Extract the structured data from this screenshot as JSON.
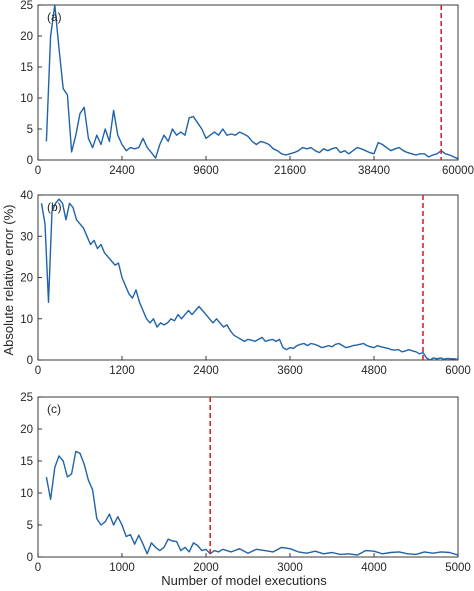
{
  "colors": {
    "series": "#1f64a8",
    "cutoff": "#d62728"
  },
  "ylabel": "Absolute relative error (%)",
  "xlabel": "Number of model executions",
  "chart_data": [
    {
      "type": "line",
      "panel_label": "(a)",
      "grid": true,
      "ylim": [
        0,
        25
      ],
      "yticks": [
        0,
        5,
        10,
        15,
        20,
        25
      ],
      "x_scale": "nonlinear (ticks unevenly spaced)",
      "x_tick_labels": [
        "0",
        "2400",
        "9600",
        "21600",
        "38400",
        "60000"
      ],
      "x_tick_index": [
        0,
        1,
        2,
        3,
        4,
        5
      ],
      "x_index": [
        0.1,
        0.15,
        0.2,
        0.25,
        0.3,
        0.35,
        0.4,
        0.45,
        0.5,
        0.55,
        0.6,
        0.65,
        0.7,
        0.75,
        0.8,
        0.85,
        0.9,
        0.95,
        1.0,
        1.05,
        1.1,
        1.15,
        1.2,
        1.25,
        1.3,
        1.35,
        1.4,
        1.45,
        1.5,
        1.55,
        1.6,
        1.65,
        1.7,
        1.75,
        1.8,
        1.85,
        1.9,
        1.95,
        2.0,
        2.05,
        2.1,
        2.15,
        2.2,
        2.25,
        2.3,
        2.35,
        2.4,
        2.45,
        2.5,
        2.55,
        2.6,
        2.65,
        2.7,
        2.75,
        2.8,
        2.85,
        2.9,
        2.95,
        3.0,
        3.05,
        3.1,
        3.15,
        3.2,
        3.25,
        3.3,
        3.35,
        3.4,
        3.45,
        3.5,
        3.55,
        3.6,
        3.65,
        3.7,
        3.75,
        3.8,
        3.85,
        3.9,
        3.95,
        4.0,
        4.05,
        4.1,
        4.15,
        4.2,
        4.25,
        4.3,
        4.35,
        4.4,
        4.45,
        4.5,
        4.55,
        4.6,
        4.65,
        4.7,
        4.75,
        4.8,
        4.85,
        4.9,
        4.95,
        5.0
      ],
      "values": [
        3,
        20,
        26,
        18,
        11.5,
        10.5,
        1.3,
        4,
        7.5,
        8.5,
        3.5,
        2,
        4,
        2.5,
        5,
        3,
        8,
        4,
        2.5,
        1.5,
        2,
        1.8,
        2,
        3.5,
        2,
        1.2,
        0.3,
        2.5,
        4,
        3,
        5,
        4,
        4.5,
        4,
        6.8,
        7,
        6,
        5,
        3.5,
        4,
        4.5,
        4,
        5,
        4,
        4.2,
        4,
        4.5,
        4.2,
        3.8,
        3,
        2.5,
        3,
        2.8,
        2.5,
        1.8,
        1.5,
        1,
        0.8,
        1,
        1.2,
        1.5,
        2,
        1.8,
        2,
        1.5,
        1.2,
        1.8,
        1.5,
        1.8,
        2,
        1.2,
        1.5,
        1,
        1.5,
        2,
        1.8,
        1.5,
        1.2,
        1,
        2.8,
        2.5,
        2,
        1.5,
        1.8,
        2,
        1.5,
        1.2,
        1,
        0.8,
        1,
        1,
        0.5,
        0.8,
        1,
        1.5,
        1,
        0.8,
        0.5,
        0.2
      ],
      "cutoff_x_index": 4.8
    },
    {
      "type": "line",
      "panel_label": "(b)",
      "grid": true,
      "ylim": [
        0,
        40
      ],
      "yticks": [
        0,
        10,
        20,
        30,
        40
      ],
      "xlim": [
        0,
        6000
      ],
      "xticks": [
        0,
        1200,
        2400,
        3600,
        4800,
        6000
      ],
      "x": [
        50,
        100,
        150,
        200,
        250,
        300,
        350,
        400,
        450,
        500,
        550,
        600,
        650,
        700,
        750,
        800,
        850,
        900,
        950,
        1000,
        1050,
        1100,
        1150,
        1200,
        1250,
        1300,
        1350,
        1400,
        1450,
        1500,
        1550,
        1600,
        1650,
        1700,
        1750,
        1800,
        1850,
        1900,
        1950,
        2000,
        2050,
        2100,
        2150,
        2200,
        2250,
        2300,
        2350,
        2400,
        2450,
        2500,
        2550,
        2600,
        2650,
        2700,
        2750,
        2800,
        2850,
        2900,
        2950,
        3000,
        3050,
        3100,
        3150,
        3200,
        3250,
        3300,
        3350,
        3400,
        3450,
        3500,
        3550,
        3600,
        3650,
        3700,
        3750,
        3800,
        3850,
        3900,
        3950,
        4000,
        4050,
        4100,
        4150,
        4200,
        4250,
        4300,
        4350,
        4400,
        4450,
        4500,
        4550,
        4600,
        4650,
        4700,
        4750,
        4800,
        4850,
        4900,
        4950,
        5000,
        5050,
        5100,
        5150,
        5200,
        5250,
        5300,
        5350,
        5400,
        5450,
        5500,
        5550,
        5600,
        5650,
        5700,
        5750,
        5800,
        5850,
        5900,
        5950,
        6000
      ],
      "values": [
        38,
        33,
        14,
        36,
        38,
        39,
        38,
        34,
        38,
        37,
        34,
        33,
        32,
        30,
        28,
        29,
        27,
        28,
        26,
        25,
        24,
        23,
        23.5,
        20,
        18,
        16,
        15,
        17,
        14,
        12,
        10,
        9,
        10,
        8,
        9,
        8.5,
        9,
        10,
        9.5,
        11,
        10,
        11,
        12,
        11,
        12,
        13,
        12,
        11,
        10,
        9,
        10,
        9,
        8,
        8.5,
        7,
        6,
        5.5,
        5,
        4.5,
        5,
        4.8,
        4.5,
        5,
        5.5,
        4.5,
        4.8,
        5,
        4.5,
        5,
        3,
        2.5,
        3,
        2.8,
        3.5,
        3.8,
        4,
        3.5,
        4,
        3.8,
        3.5,
        3,
        3.2,
        3.5,
        3.2,
        3.8,
        4,
        3.5,
        3,
        3.2,
        3.5,
        3.6,
        3.8,
        4,
        3.5,
        3.2,
        3,
        3.5,
        3.2,
        3,
        2.8,
        2.5,
        2.4,
        2.5,
        2,
        2.2,
        2.5,
        2.2,
        2,
        1.5,
        1.8,
        0.5,
        0,
        0.5,
        0.3,
        0.5,
        0.2,
        0.4,
        0.3,
        0.3,
        0.1
      ],
      "cutoff_x": 5500
    },
    {
      "type": "line",
      "panel_label": "(c)",
      "grid": true,
      "ylim": [
        0,
        25
      ],
      "yticks": [
        0,
        5,
        10,
        15,
        20,
        25
      ],
      "xlim": [
        0,
        5000
      ],
      "xticks": [
        0,
        1000,
        2000,
        3000,
        4000,
        5000
      ],
      "x": [
        100,
        150,
        200,
        250,
        300,
        350,
        400,
        450,
        500,
        550,
        600,
        650,
        700,
        750,
        800,
        850,
        900,
        950,
        1000,
        1050,
        1100,
        1150,
        1200,
        1250,
        1300,
        1350,
        1400,
        1450,
        1500,
        1550,
        1600,
        1650,
        1700,
        1750,
        1800,
        1850,
        1900,
        1950,
        2000,
        2050,
        2100,
        2150,
        2200,
        2300,
        2400,
        2500,
        2600,
        2700,
        2800,
        2900,
        3000,
        3100,
        3200,
        3300,
        3400,
        3500,
        3600,
        3700,
        3800,
        3900,
        4000,
        4100,
        4200,
        4300,
        4400,
        4500,
        4600,
        4700,
        4800,
        4900,
        5000
      ],
      "values": [
        12.5,
        9,
        14,
        15.8,
        15,
        12.5,
        13,
        16.5,
        16.2,
        14.5,
        12,
        10.5,
        6,
        5,
        5.5,
        6.7,
        5,
        6.3,
        5,
        3.2,
        3.5,
        2,
        3.4,
        2,
        0.5,
        2.2,
        1.5,
        1,
        1.5,
        2.8,
        2.5,
        2.4,
        1,
        1.5,
        0.8,
        2.2,
        1.8,
        1,
        1.2,
        0.5,
        1,
        0.8,
        1.2,
        0.8,
        1.3,
        0.6,
        1.2,
        1,
        0.8,
        1.5,
        1.3,
        0.8,
        0.6,
        0.9,
        0.5,
        0.7,
        0.4,
        0.5,
        0.3,
        1,
        0.9,
        0.5,
        0.7,
        0.8,
        0.5,
        0.4,
        0.8,
        0.6,
        0.8,
        0.7,
        0.3
      ],
      "cutoff_x": 2050
    }
  ]
}
